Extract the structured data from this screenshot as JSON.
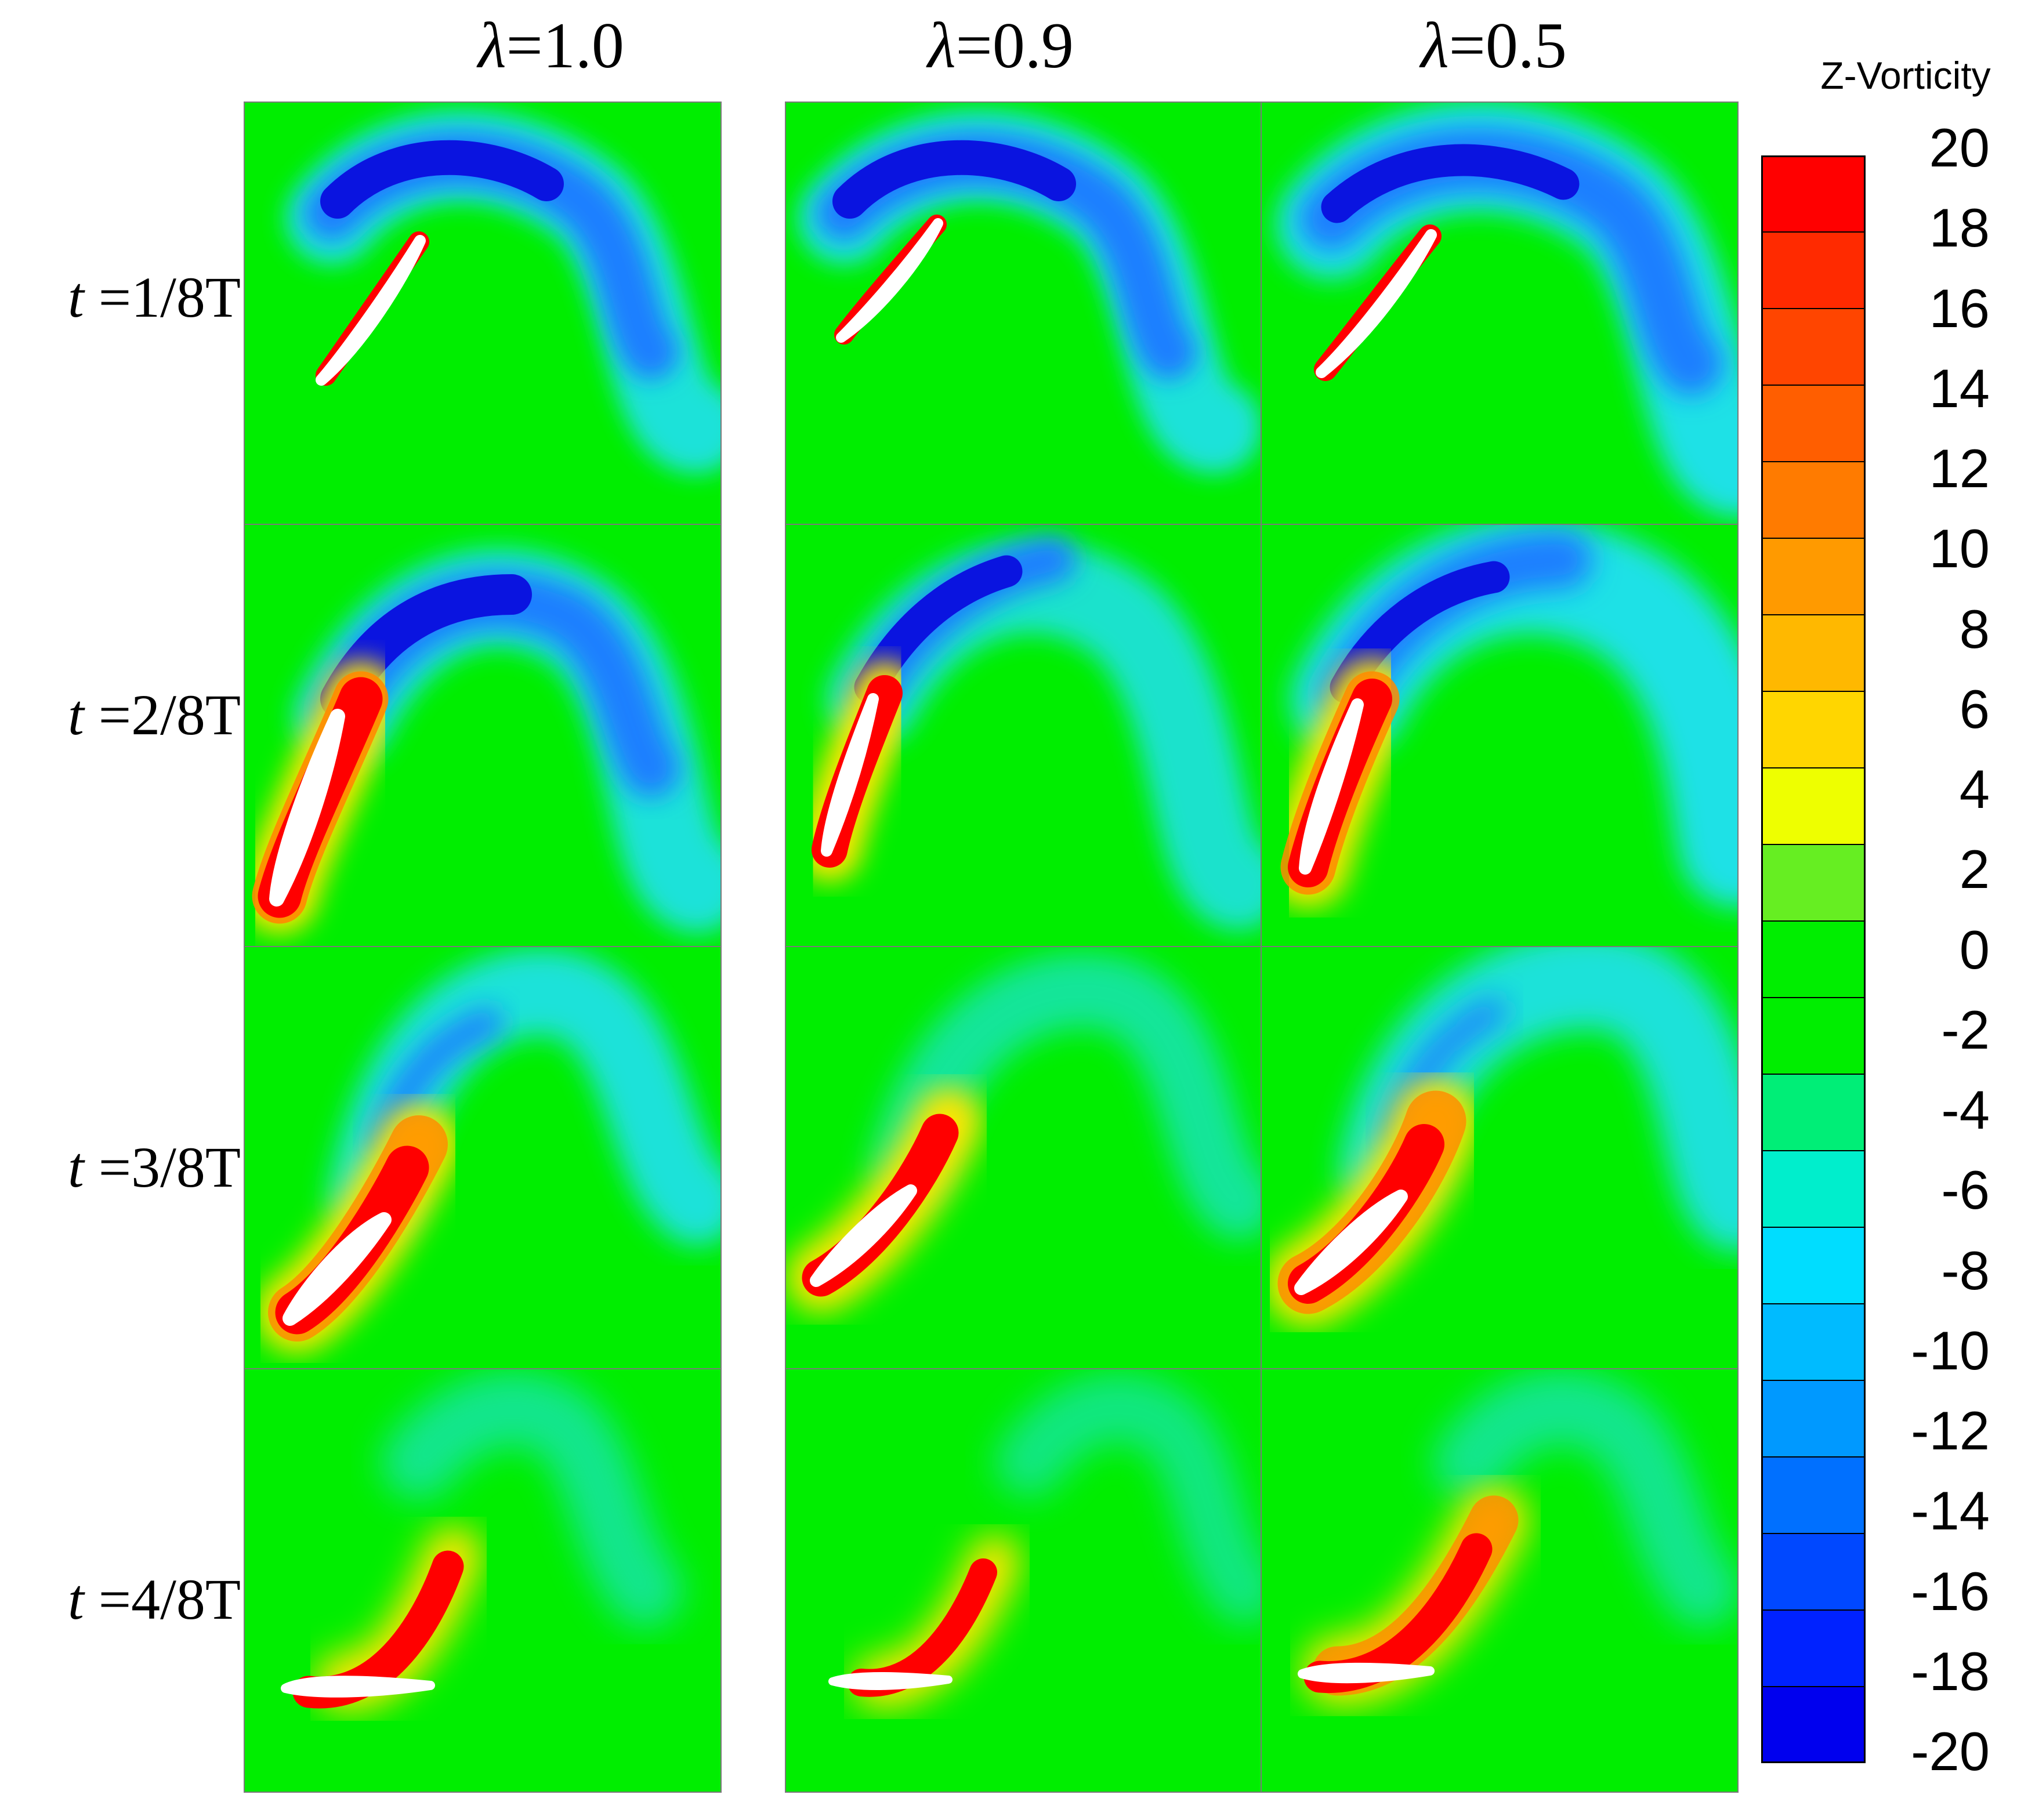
{
  "figure": {
    "columns": [
      {
        "symbol": "λ",
        "value": "=1.0"
      },
      {
        "symbol": "λ",
        "value": "=0.9"
      },
      {
        "symbol": "λ",
        "value": "=0.5"
      }
    ],
    "rows": [
      {
        "symbol": "t",
        "value": " =1/8T"
      },
      {
        "symbol": "t",
        "value": " =2/8T"
      },
      {
        "symbol": "t",
        "value": " =3/8T"
      },
      {
        "symbol": "t",
        "value": " =4/8T"
      }
    ],
    "colorbar": {
      "title": "Z-Vorticity",
      "ticks": [
        "20",
        "18",
        "16",
        "14",
        "12",
        "10",
        "8",
        "6",
        "4",
        "2",
        "0",
        "-2",
        "-4",
        "-6",
        "-8",
        "-10",
        "-12",
        "-14",
        "-16",
        "-18",
        "-20"
      ],
      "levels": [
        "#ff0000",
        "#ff2a00",
        "#ff4500",
        "#ff5e00",
        "#ff7b00",
        "#ff9a00",
        "#ffb800",
        "#ffd600",
        "#eeff00",
        "#66ee22",
        "#00ee00",
        "#00ee00",
        "#00ee77",
        "#00eecc",
        "#00ddff",
        "#00bbff",
        "#0099ff",
        "#0070ff",
        "#0048ff",
        "#0022ff",
        "#0000ee"
      ]
    },
    "colors": {
      "background_field": "#00ee00",
      "negative_core": "#0a14e0",
      "negative_mid": "#1f7fff",
      "negative_outer": "#22e0ff",
      "positive_core": "#ff0000",
      "positive_mid": "#ff8a00",
      "positive_outer": "#ffe600",
      "airfoil": "#ffffff"
    }
  }
}
